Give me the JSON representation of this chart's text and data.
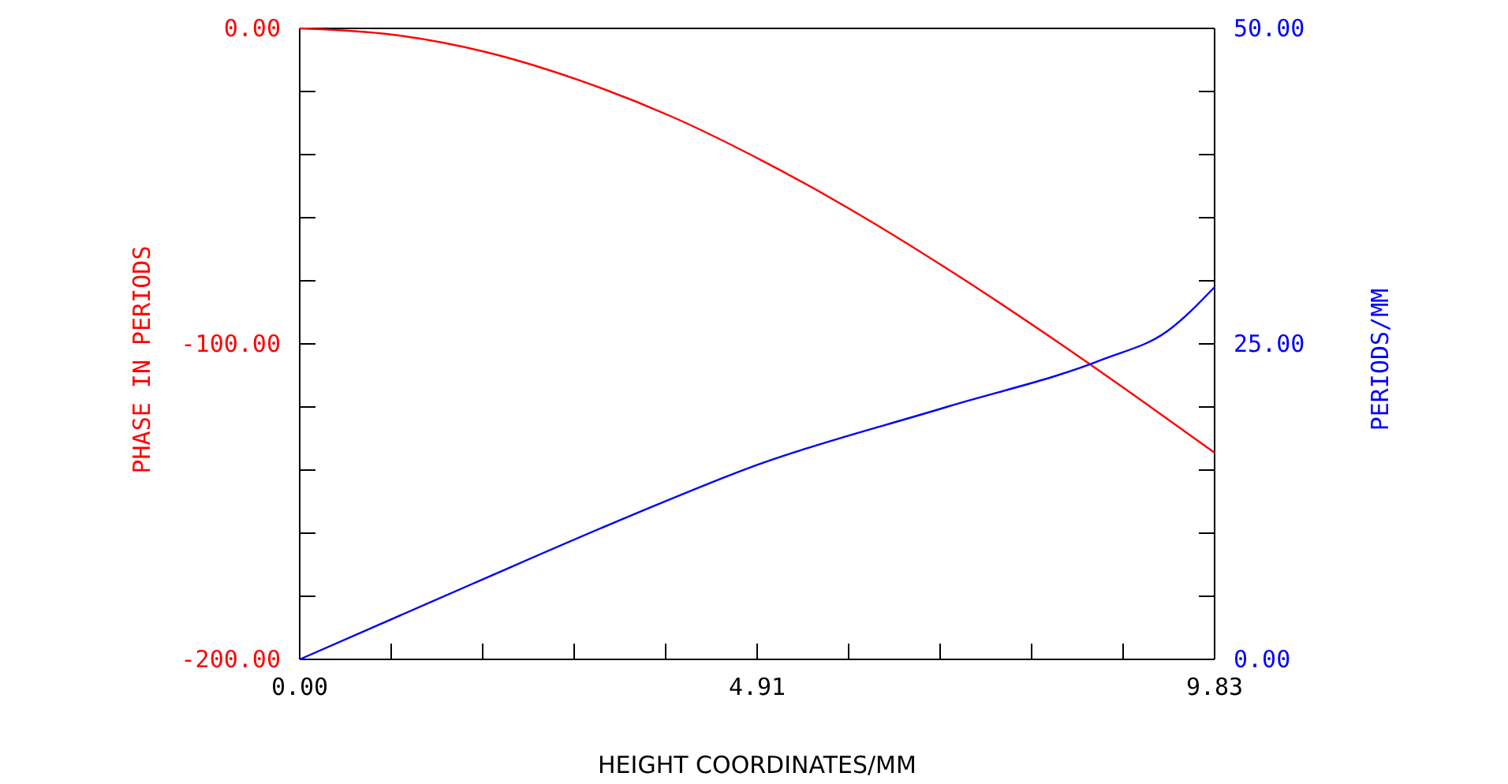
{
  "chart_data": {
    "type": "line",
    "xlabel": "HEIGHT COORDINATES/MM",
    "ylabel": "PHASE IN PERIODS",
    "y2label": "PERIODS/MM",
    "xlim": [
      0,
      9.83
    ],
    "xticks": [
      {
        "value": 0,
        "label": "0.00"
      },
      {
        "value": 0.983,
        "label": null
      },
      {
        "value": 1.966,
        "label": null
      },
      {
        "value": 2.949,
        "label": null
      },
      {
        "value": 3.932,
        "label": null
      },
      {
        "value": 4.915,
        "label": "4.91"
      },
      {
        "value": 5.898,
        "label": null
      },
      {
        "value": 6.881,
        "label": null
      },
      {
        "value": 7.864,
        "label": null
      },
      {
        "value": 8.847,
        "label": null
      },
      {
        "value": 9.83,
        "label": "9.83"
      }
    ],
    "ylim": [
      -200,
      0
    ],
    "yticks": [
      {
        "value": -200,
        "label": "-200.00"
      },
      {
        "value": -180,
        "label": null
      },
      {
        "value": -160,
        "label": null
      },
      {
        "value": -140,
        "label": null
      },
      {
        "value": -120,
        "label": null
      },
      {
        "value": -100,
        "label": "-100.00"
      },
      {
        "value": -80,
        "label": null
      },
      {
        "value": -60,
        "label": null
      },
      {
        "value": -40,
        "label": null
      },
      {
        "value": -20,
        "label": null
      },
      {
        "value": 0,
        "label": "0.00"
      }
    ],
    "y2lim": [
      0,
      50
    ],
    "y2ticks": [
      {
        "value": 0,
        "label": "0.00"
      },
      {
        "value": 5,
        "label": null
      },
      {
        "value": 10,
        "label": null
      },
      {
        "value": 15,
        "label": null
      },
      {
        "value": 20,
        "label": null
      },
      {
        "value": 25,
        "label": "25.00"
      },
      {
        "value": 30,
        "label": null
      },
      {
        "value": 35,
        "label": null
      },
      {
        "value": 40,
        "label": null
      },
      {
        "value": 45,
        "label": null
      },
      {
        "value": 50,
        "label": "50.00"
      }
    ],
    "grid": false,
    "series": [
      {
        "color": "#ff0000",
        "x": [
          0,
          1,
          2,
          3,
          4,
          5,
          6,
          7,
          8,
          9,
          9.83
        ],
        "values": [
          0,
          -2,
          -7.5,
          -16.4,
          -28,
          -42.4,
          -58.8,
          -77,
          -96.5,
          -117,
          -134.5
        ]
      },
      {
        "color": "#0000ff",
        "axis": "y2",
        "x": [
          0,
          1.86,
          3.56,
          4.91,
          6.95,
          8.64,
          9.32,
          9.83
        ],
        "values": [
          0,
          6,
          11.4,
          15.4,
          20,
          23.8,
          26,
          29.5
        ]
      }
    ]
  }
}
